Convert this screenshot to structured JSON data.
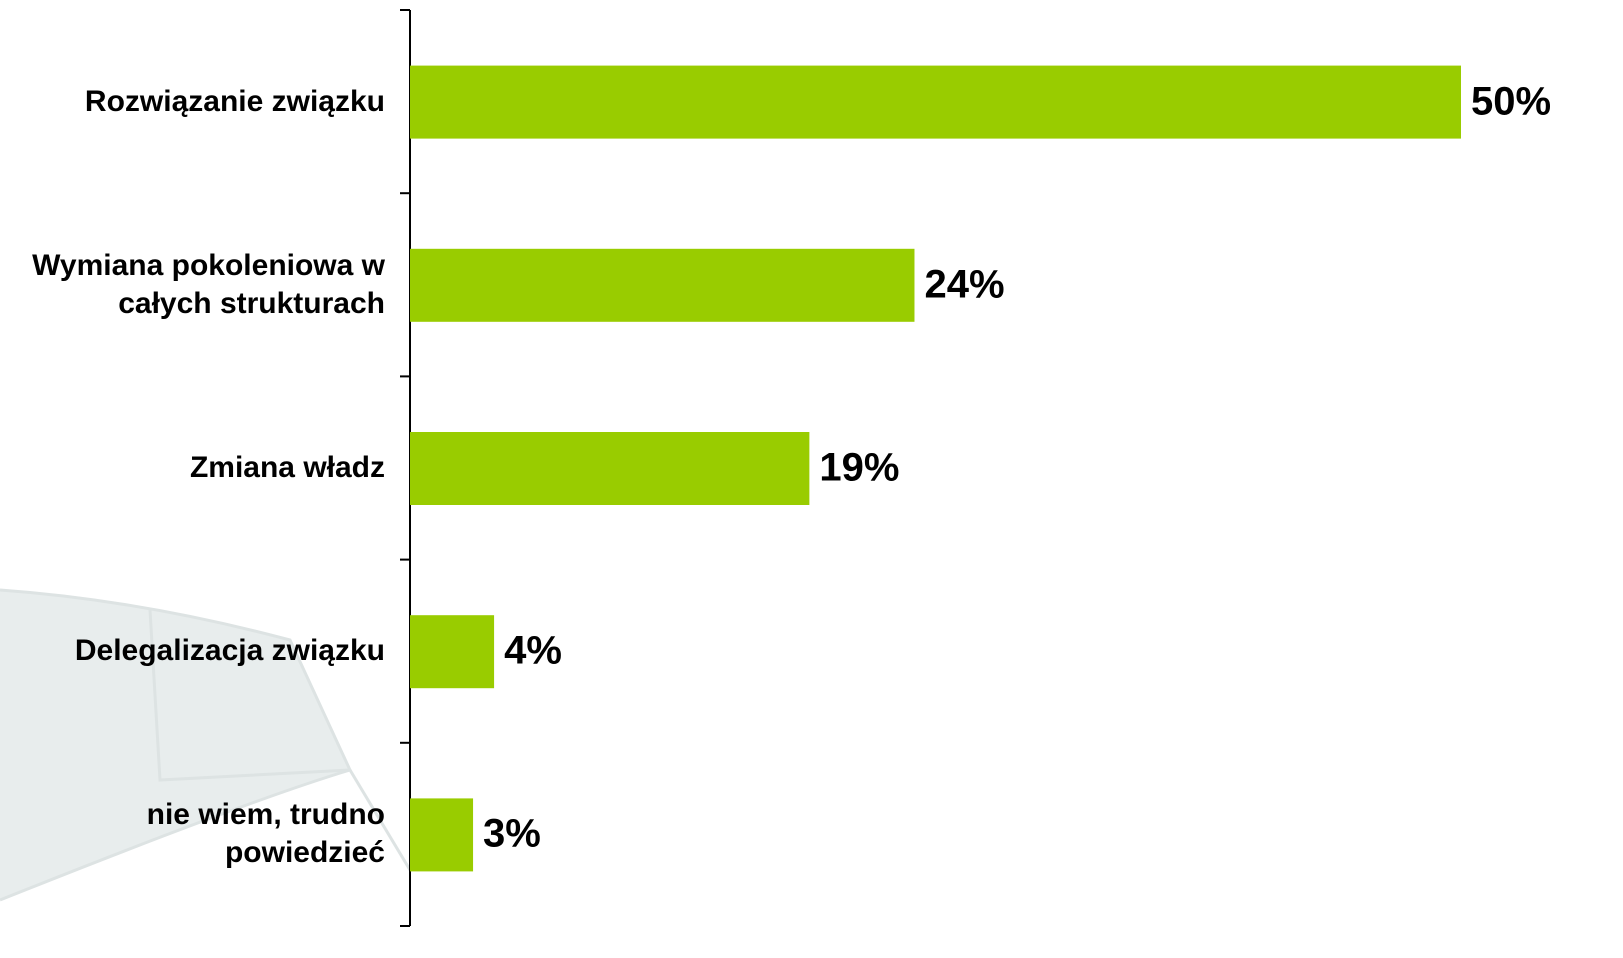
{
  "chart_data": {
    "type": "barh",
    "categories": [
      "Rozwiązanie związku",
      "Wymiana pokoleniowa w\ncałych strukturach",
      "Zmiana władz",
      "Delegalizacja związku",
      "nie wiem, trudno\npowiedzieć"
    ],
    "values": [
      50,
      24,
      19,
      4,
      3
    ],
    "value_labels": [
      "50%",
      "24%",
      "19%",
      "4%",
      "3%"
    ],
    "color": "#99cc00"
  }
}
